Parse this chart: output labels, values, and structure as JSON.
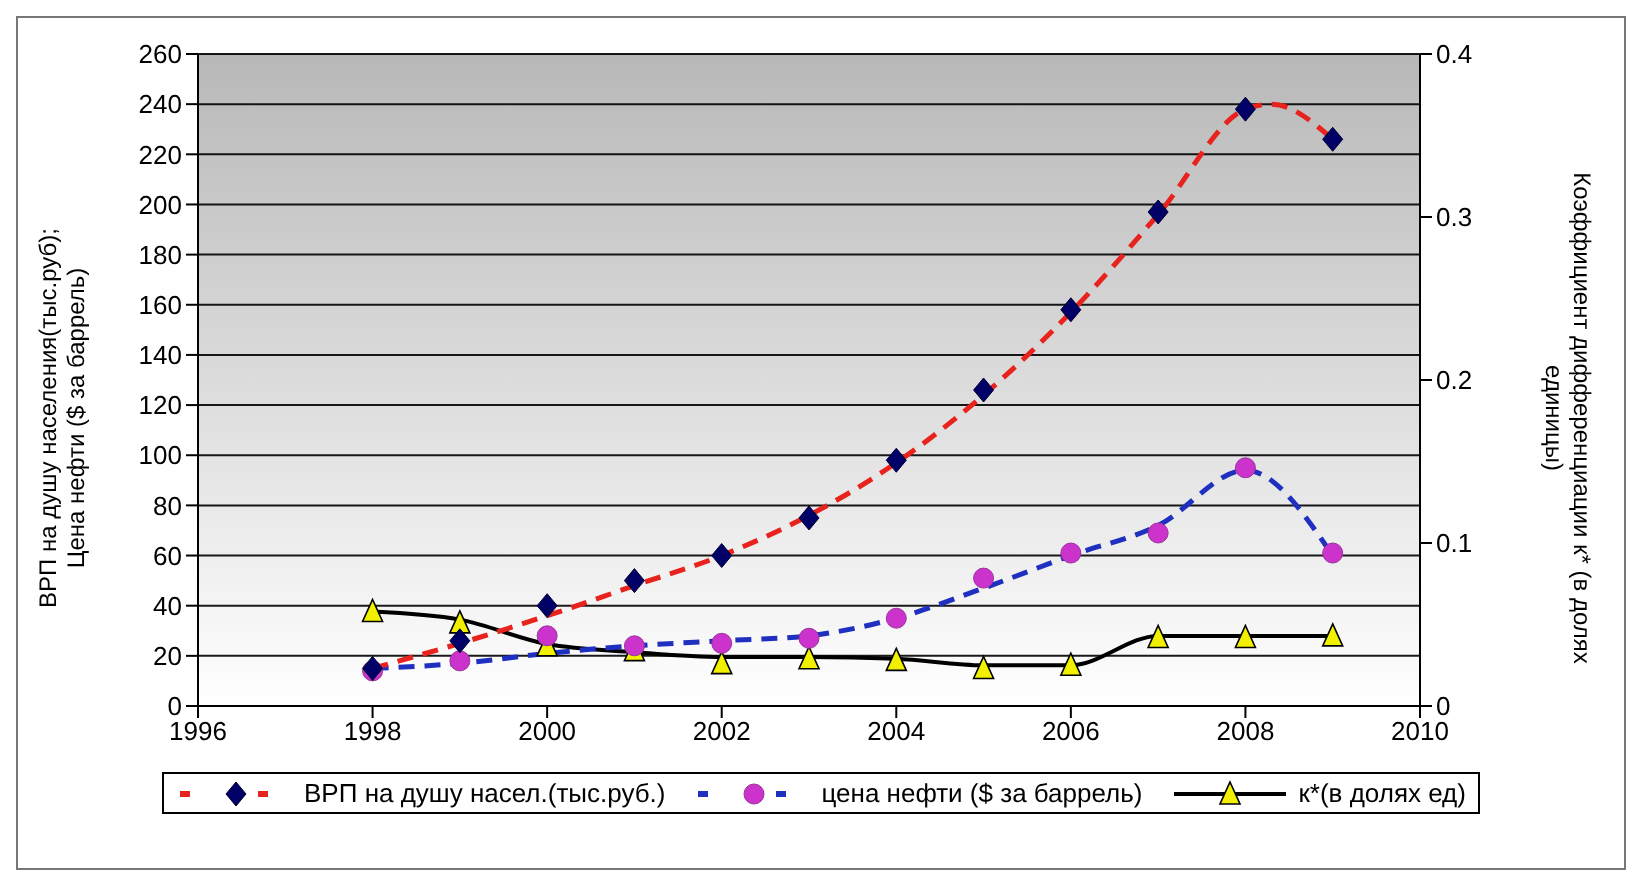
{
  "chart_data": {
    "type": "line",
    "ylabel": "ВРП на душу населения(тыс.руб);\nЦена нефти ($ за баррель)",
    "y2label": "Коэффициент дифференциации к* (в долях\nединицы)",
    "xlim": [
      1996,
      2010
    ],
    "xticks": [
      1996,
      1998,
      2000,
      2002,
      2004,
      2006,
      2008,
      2010
    ],
    "ylim": [
      0,
      260
    ],
    "yticks": [
      0,
      20,
      40,
      60,
      80,
      100,
      120,
      140,
      160,
      180,
      200,
      220,
      240,
      260
    ],
    "y2lim": [
      0,
      0.4
    ],
    "y2ticks": [
      0,
      0.1,
      0.2,
      0.3,
      0.4
    ],
    "grid": "y",
    "legend": "bottom",
    "series": [
      {
        "name": "ВРП на душу насел.(тыс.руб.)",
        "type": "scatter",
        "marker": "diamond",
        "color": "#000066",
        "x": [
          1998,
          1999,
          2000,
          2001,
          2002,
          2003,
          2004,
          2005,
          2006,
          2007,
          2008,
          2009
        ],
        "values": [
          15,
          26,
          40,
          50,
          60,
          75,
          98,
          126,
          158,
          197,
          238,
          226
        ]
      },
      {
        "type": "line",
        "marker": "none",
        "line_style": "dashed",
        "color": "#e8221c",
        "x": [
          1998,
          1999,
          2000,
          2001,
          2002,
          2003,
          2004,
          2005,
          2006,
          2007,
          2008,
          2008.3,
          2009
        ],
        "values": [
          15,
          25,
          36,
          48,
          60,
          76,
          97,
          124,
          157,
          196,
          238,
          240,
          226
        ]
      },
      {
        "name": "цена нефти ($ за баррель)",
        "type": "scatter",
        "marker": "circle",
        "color": "#cc33cc",
        "x": [
          1998,
          1999,
          2000,
          2001,
          2002,
          2003,
          2004,
          2005,
          2006,
          2007,
          2008,
          2009
        ],
        "values": [
          14,
          18,
          28,
          24,
          25,
          27,
          35,
          51,
          61,
          69,
          95,
          61
        ]
      },
      {
        "type": "line",
        "marker": "none",
        "line_style": "dashed",
        "color": "#1f2fc0",
        "x": [
          1998,
          1999,
          2000,
          2001,
          2002,
          2003,
          2004,
          2005,
          2006,
          2007,
          2008,
          2009
        ],
        "values": [
          15,
          17,
          21,
          24,
          26,
          28,
          35,
          47,
          60,
          72,
          94,
          60
        ]
      },
      {
        "name": "к*(в долях ед)",
        "type": "scatter",
        "marker": "triangle",
        "axis": "y2",
        "color": "#f0f000",
        "x": [
          1998,
          1999,
          2000,
          2001,
          2002,
          2003,
          2004,
          2005,
          2006,
          2007,
          2008,
          2009
        ],
        "values": [
          0.058,
          0.051,
          0.037,
          0.034,
          0.026,
          0.029,
          0.028,
          0.023,
          0.025,
          0.042,
          0.042,
          0.043
        ]
      },
      {
        "type": "line",
        "marker": "none",
        "line_style": "solid",
        "axis": "y2",
        "color": "#000000",
        "x": [
          1998,
          1999,
          2000,
          2001,
          2002,
          2003,
          2004,
          2005,
          2006,
          2007,
          2008,
          2009
        ],
        "values": [
          0.058,
          0.053,
          0.038,
          0.033,
          0.03,
          0.03,
          0.029,
          0.025,
          0.025,
          0.043,
          0.043,
          0.043
        ]
      }
    ]
  }
}
